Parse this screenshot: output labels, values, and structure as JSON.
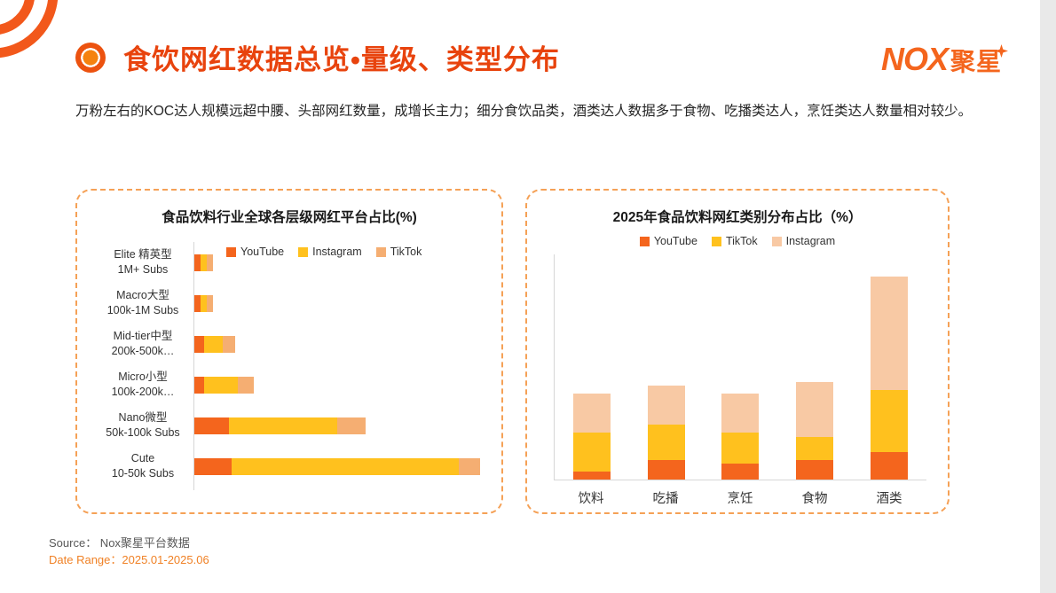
{
  "header": {
    "title": "食饮网红数据总览•量级、类型分布",
    "logo_text": "NOX",
    "logo_cn": "聚星"
  },
  "description": "万粉左右的KOC达人规模远超中腰、头部网红数量，成增长主力；细分食饮品类，酒类达人数据多于食物、吃播类达人，烹饪类达人数量相对较少。",
  "theme": {
    "accent_orange": "#F4651D",
    "title_color": "#E8430D",
    "dashed_border": "#F5A156",
    "yellow": "#FFC11E",
    "peach_left": "#F5AE72",
    "peach_right": "#F8C9A4",
    "date_range_color": "#F08125"
  },
  "chart_data": [
    {
      "type": "bar",
      "orientation": "horizontal",
      "title": "食品饮料行业全球各层级网红平台占比(%)",
      "legend_position": "top",
      "grid": false,
      "xlim": [
        0,
        100
      ],
      "unit": "%",
      "categories": [
        {
          "tier": "Elite 精英型",
          "subs": "1M+ Subs"
        },
        {
          "tier": "Macro大型",
          "subs": "100k-1M Subs"
        },
        {
          "tier": "Mid-tier中型",
          "subs": "200k-500k…"
        },
        {
          "tier": "Micro小型",
          "subs": "100k-200k…"
        },
        {
          "tier": "Nano微型",
          "subs": "50k-100k Subs"
        },
        {
          "tier": "Cute",
          "subs": "10-50k Subs"
        }
      ],
      "colors": [
        "#F4651D",
        "#FFC11E",
        "#F5AE72"
      ],
      "series": [
        {
          "name": "YouTube",
          "values": [
            2,
            2,
            3,
            3,
            11,
            12
          ]
        },
        {
          "name": "Instagram",
          "values": [
            2,
            2,
            6,
            11,
            35,
            73
          ]
        },
        {
          "name": "TikTok",
          "values": [
            2,
            2,
            4,
            5,
            9,
            7
          ]
        }
      ]
    },
    {
      "type": "bar",
      "orientation": "vertical",
      "title": "2025年食品饮料网红类别分布占比（%）",
      "legend_position": "top",
      "grid": false,
      "ylim": [
        0,
        55
      ],
      "unit": "%",
      "categories": [
        "饮料",
        "吃播",
        "烹饪",
        "食物",
        "酒类"
      ],
      "colors": [
        "#F4651D",
        "#FFC11E",
        "#F8C9A4"
      ],
      "series": [
        {
          "name": "YouTube",
          "values": [
            2,
            5,
            4,
            5,
            7
          ]
        },
        {
          "name": "TikTok",
          "values": [
            10,
            9,
            8,
            6,
            16
          ]
        },
        {
          "name": "Instagram",
          "values": [
            10,
            10,
            10,
            14,
            29
          ]
        }
      ]
    }
  ],
  "footer": {
    "source": "Source： Nox聚星平台数据",
    "date_range": "Date Range：2025.01-2025.06"
  }
}
